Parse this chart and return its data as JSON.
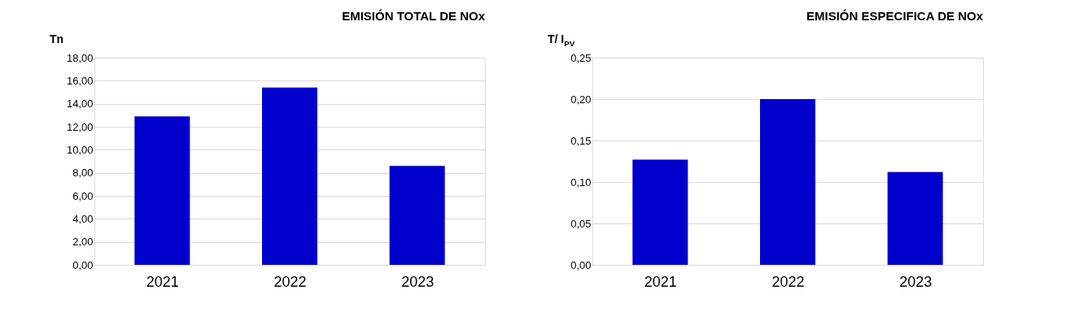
{
  "chart_data": [
    {
      "type": "bar",
      "title": "EMISIÓN TOTAL DE NOx",
      "ylabel": "Tn",
      "categories": [
        "2021",
        "2022",
        "2023"
      ],
      "values": [
        12.9,
        15.4,
        8.6
      ],
      "color": "#0000cc",
      "ylim": [
        0,
        18
      ],
      "yticks": [
        {
          "value": 0,
          "label": "0,00"
        },
        {
          "value": 2,
          "label": "2,00"
        },
        {
          "value": 4,
          "label": "4,00"
        },
        {
          "value": 6,
          "label": "6,00"
        },
        {
          "value": 8,
          "label": "8,00"
        },
        {
          "value": 10,
          "label": "10,00"
        },
        {
          "value": 12,
          "label": "12,00"
        },
        {
          "value": 14,
          "label": "14,00"
        },
        {
          "value": 16,
          "label": "16,00"
        },
        {
          "value": 18,
          "label": "18,00"
        }
      ],
      "grid": "y"
    },
    {
      "type": "bar",
      "title": "EMISIÓN ESPECIFICA DE NOx",
      "ylabel": "T/ I$_{PV}$",
      "categories": [
        "2021",
        "2022",
        "2023"
      ],
      "values": [
        0.127,
        0.2,
        0.112
      ],
      "color": "#0000cc",
      "ylim": [
        0,
        0.25
      ],
      "yticks": [
        {
          "value": 0,
          "label": "0,00"
        },
        {
          "value": 0.05,
          "label": "0,05"
        },
        {
          "value": 0.1,
          "label": "0,10"
        },
        {
          "value": 0.15,
          "label": "0,15"
        },
        {
          "value": 0.2,
          "label": "0,20"
        },
        {
          "value": 0.25,
          "label": "0,25"
        }
      ],
      "grid": "y"
    }
  ]
}
